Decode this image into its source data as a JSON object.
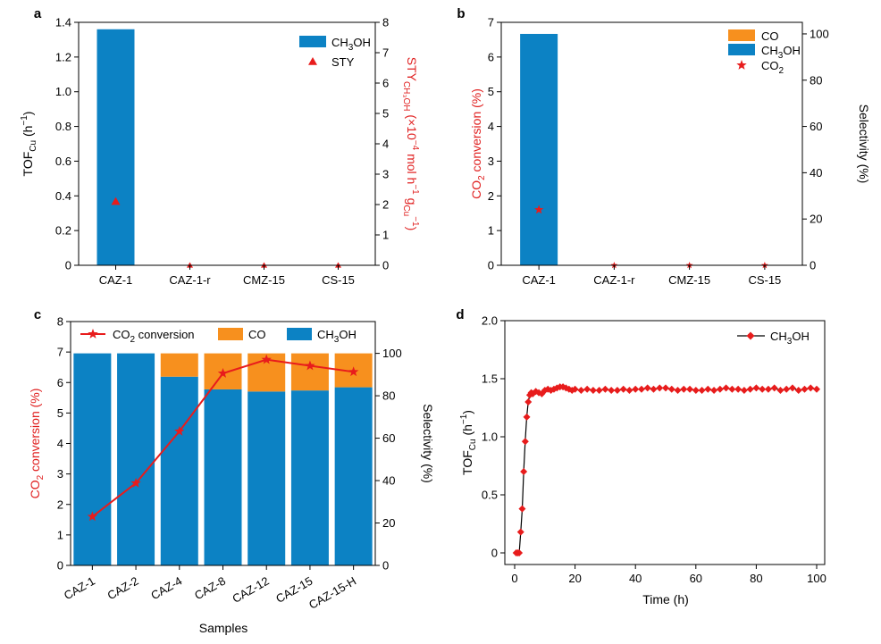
{
  "colors": {
    "blue": "#0c82c4",
    "orange": "#f7901e",
    "red": "#e81c1c",
    "black": "#000000"
  },
  "chart_data": [
    {
      "panel": "a",
      "type": "bar",
      "categories": [
        "CAZ-1",
        "CAZ-1-r",
        "CMZ-15",
        "CS-15"
      ],
      "series": [
        {
          "name": "CH3OH",
          "legend_main": "CH",
          "legend_sub": "3",
          "legend_rest": "OH",
          "axis": "left",
          "values": [
            1.36,
            0,
            0,
            0
          ]
        },
        {
          "name": "STY",
          "legend_main": "STY",
          "axis": "right",
          "marker": "triangle",
          "values": [
            2.1,
            0,
            0,
            0
          ]
        }
      ],
      "ylabel": {
        "main": "TOF",
        "sub": "Cu",
        "rest": " (h",
        "sup": "−1",
        "end": ")"
      },
      "y2label": {
        "main": "STY",
        "sub": "CH₃OH",
        "rest": " (×10",
        "sup": "−4",
        "rest2": " mol h",
        "sup2": "−1",
        "rest3": " g",
        "sub2": "Cu",
        "sup3": "−1",
        "end": ")"
      },
      "ylim": [
        0,
        1.4
      ],
      "yticks": [
        "0",
        "0.2",
        "0.4",
        "0.6",
        "0.8",
        "1.0",
        "1.2",
        "1.4"
      ],
      "y2lim": [
        0,
        8
      ],
      "y2ticks": [
        "0",
        "1",
        "2",
        "3",
        "4",
        "5",
        "6",
        "7",
        "8"
      ],
      "legend": "top-right"
    },
    {
      "panel": "b",
      "type": "bar",
      "categories": [
        "CAZ-1",
        "CAZ-1-r",
        "CMZ-15",
        "CS-15"
      ],
      "series": [
        {
          "name": "CO",
          "legend_main": "CO",
          "axis": "right",
          "values": [
            0,
            0,
            0,
            0
          ]
        },
        {
          "name": "CH3OH",
          "legend_main": "CH",
          "legend_sub": "3",
          "legend_rest": "OH",
          "axis": "right",
          "values": [
            100,
            0,
            0,
            0
          ]
        },
        {
          "name": "CO2",
          "legend_main": "CO",
          "legend_sub": "2",
          "axis": "left",
          "marker": "star",
          "values": [
            1.6,
            0,
            0,
            0
          ]
        }
      ],
      "ylabel": {
        "main": "CO",
        "sub": "2",
        "rest": " conversion (%)"
      },
      "y2label": "Selectivity (%)",
      "ylim": [
        0,
        7
      ],
      "yticks": [
        "0",
        "1",
        "2",
        "3",
        "4",
        "5",
        "6",
        "7"
      ],
      "y2lim": [
        0,
        105
      ],
      "y2ticks": [
        "0",
        "20",
        "40",
        "60",
        "80",
        "100"
      ],
      "legend": "top-right"
    },
    {
      "panel": "c",
      "type": "bar",
      "categories": [
        "CAZ-1",
        "CAZ-2",
        "CAZ-4",
        "CAZ-8",
        "CAZ-12",
        "CAZ-15",
        "CAZ-15-H"
      ],
      "series": [
        {
          "name": "CH3OH",
          "legend_main": "CH",
          "legend_sub": "3",
          "legend_rest": "OH",
          "axis": "right",
          "stacked": true,
          "values": [
            100,
            100,
            89,
            83,
            82,
            82.5,
            84
          ]
        },
        {
          "name": "CO",
          "legend_main": "CO",
          "axis": "right",
          "stacked": true,
          "values": [
            0,
            0,
            11,
            17,
            18,
            17.5,
            16
          ]
        },
        {
          "name": "CO2 conversion",
          "legend_main": "CO",
          "legend_sub": "2",
          "legend_rest": " conversion",
          "axis": "left",
          "marker": "star-line",
          "values": [
            1.6,
            2.7,
            4.4,
            6.3,
            6.75,
            6.55,
            6.35
          ]
        }
      ],
      "xlabel": "Samples",
      "ylabel": {
        "main": "CO",
        "sub": "2",
        "rest": " conversion (%)"
      },
      "y2label": "Selectivity (%)",
      "ylim": [
        0,
        8
      ],
      "yticks": [
        "0",
        "1",
        "2",
        "3",
        "4",
        "5",
        "6",
        "7",
        "8"
      ],
      "y2lim": [
        0,
        115
      ],
      "y2ticks": [
        "0",
        "20",
        "40",
        "60",
        "80",
        "100"
      ],
      "legend": "top"
    },
    {
      "panel": "d",
      "type": "line",
      "series": [
        {
          "name": "CH3OH",
          "legend_main": "CH",
          "legend_sub": "3",
          "legend_rest": "OH",
          "x": [
            0.5,
            1.0,
            1.5,
            2.0,
            2.5,
            3.0,
            3.5,
            4.0,
            4.5,
            5.0,
            5.5,
            6,
            7,
            8,
            9,
            10,
            11,
            12,
            13,
            14,
            15,
            16,
            17,
            18,
            19,
            20,
            22,
            24,
            26,
            28,
            30,
            32,
            34,
            36,
            38,
            40,
            42,
            44,
            46,
            48,
            50,
            52,
            54,
            56,
            58,
            60,
            62,
            64,
            66,
            68,
            70,
            72,
            74,
            76,
            78,
            80,
            82,
            84,
            86,
            88,
            90,
            92,
            94,
            96,
            98,
            100
          ],
          "y": [
            0,
            0,
            0,
            0.18,
            0.38,
            0.7,
            0.96,
            1.17,
            1.3,
            1.36,
            1.38,
            1.37,
            1.39,
            1.38,
            1.37,
            1.4,
            1.41,
            1.4,
            1.41,
            1.42,
            1.43,
            1.43,
            1.42,
            1.41,
            1.4,
            1.41,
            1.4,
            1.41,
            1.4,
            1.4,
            1.41,
            1.4,
            1.4,
            1.41,
            1.4,
            1.41,
            1.41,
            1.42,
            1.41,
            1.42,
            1.42,
            1.41,
            1.4,
            1.41,
            1.41,
            1.4,
            1.4,
            1.41,
            1.4,
            1.41,
            1.42,
            1.41,
            1.41,
            1.4,
            1.41,
            1.42,
            1.41,
            1.41,
            1.42,
            1.4,
            1.41,
            1.42,
            1.4,
            1.41,
            1.42,
            1.41
          ]
        }
      ],
      "xlabel": "Time (h)",
      "ylabel": {
        "main": "TOF",
        "sub": "Cu",
        "rest": " (h",
        "sup": "−1",
        "end": ")"
      },
      "xlim": [
        0,
        100
      ],
      "xticks": [
        "0",
        "20",
        "40",
        "60",
        "80",
        "100"
      ],
      "ylim": [
        0,
        2.0
      ],
      "yticks": [
        "0",
        "0.5",
        "1.0",
        "1.5",
        "2.0"
      ],
      "legend": "top-right"
    }
  ]
}
